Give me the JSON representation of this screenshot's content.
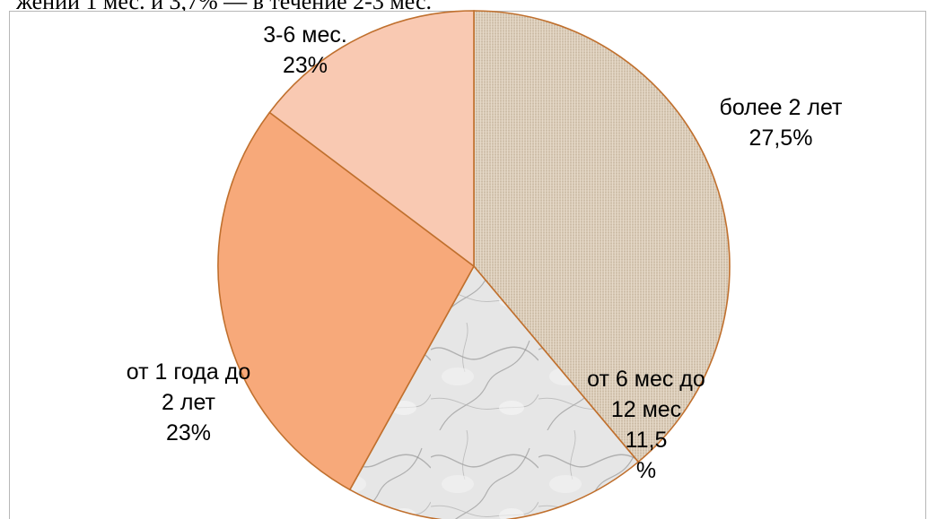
{
  "cut_text": "жений 1 мес. и 3,7% — в течение 2-3 мес.",
  "chart_data": {
    "type": "pie",
    "title": "",
    "slices": [
      {
        "label_lines": [
          "более  2 лет"
        ],
        "percent_label": "27,5%",
        "value": 27.5,
        "color": "#d9ccba"
      },
      {
        "label_lines": [
          "от 6 мес до",
          "12 мес"
        ],
        "percent_label": "11,5\n%",
        "value": 11.5,
        "color": "#dcdcdc"
      },
      {
        "label_lines": [
          "от 1 года до",
          "2 лет"
        ],
        "percent_label": "23%",
        "value": 23,
        "color": "#f7a97a"
      },
      {
        "label_lines": [
          "3-6 мес."
        ],
        "percent_label": "23%",
        "value": 23,
        "color": "#f9c9b2"
      }
    ],
    "slice_outline_color": "#c0702e",
    "legend": "none"
  }
}
